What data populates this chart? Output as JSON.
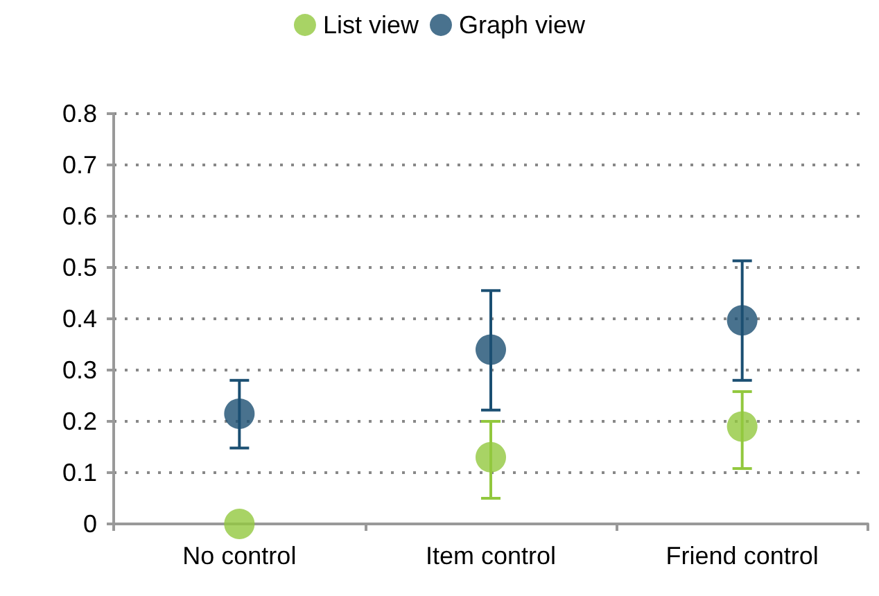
{
  "chart_data": {
    "type": "scatter",
    "categories": [
      "No control",
      "Item control",
      "Friend control"
    ],
    "series": [
      {
        "name": "List view",
        "color": "#92c83e",
        "values": [
          0,
          0.13,
          0.19
        ],
        "errors": [
          null,
          [
            0.05,
            0.2
          ],
          [
            0.108,
            0.258
          ]
        ]
      },
      {
        "name": "Graph view",
        "color": "#1b4f72",
        "values": [
          0.215,
          0.34,
          0.397
        ],
        "errors": [
          [
            0.148,
            0.28
          ],
          [
            0.222,
            0.455
          ],
          [
            0.28,
            0.513
          ]
        ]
      }
    ],
    "ylim": [
      0,
      0.8
    ],
    "yticks": [
      0,
      0.1,
      0.2,
      0.3,
      0.4,
      0.5,
      0.6,
      0.7,
      0.8
    ],
    "grid": "y",
    "legend": "top",
    "marker": "circle"
  }
}
